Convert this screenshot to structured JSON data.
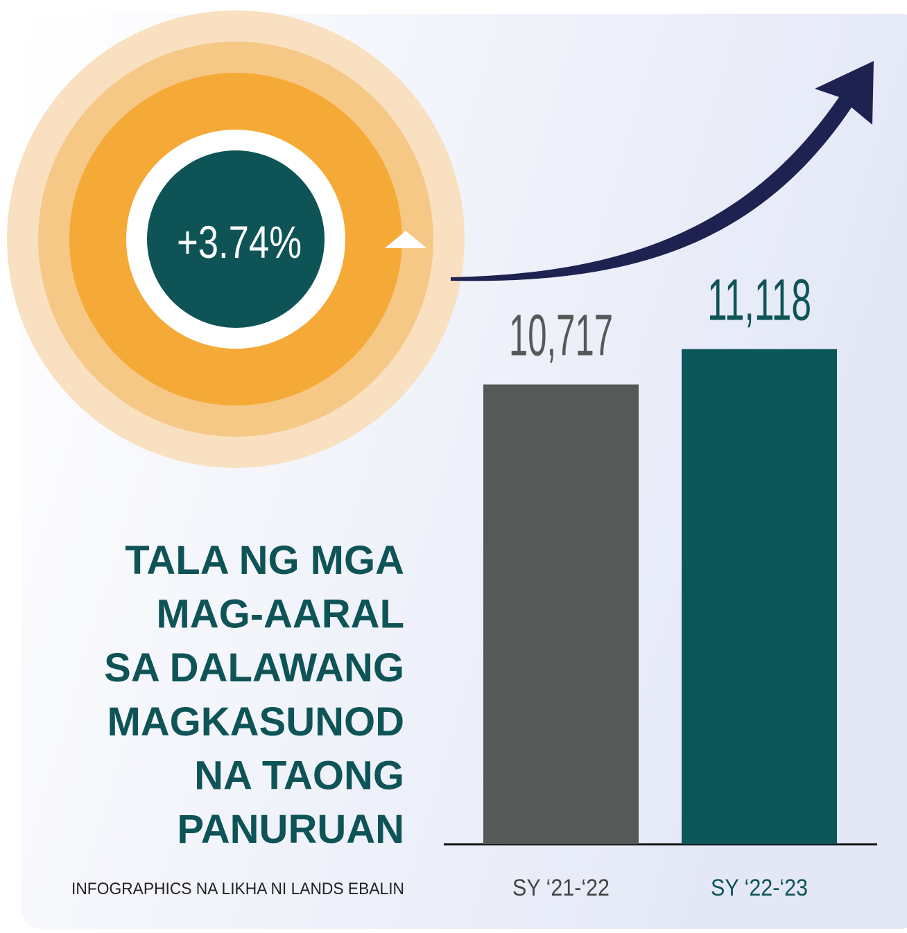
{
  "chart_data": {
    "type": "bar",
    "title": [
      "TALA NG MGA",
      "MAG-AARAL",
      "SA DALAWANG",
      "MAGKASUNOD",
      "NA TAONG",
      "PANURUAN"
    ],
    "annotation": "+3.74%",
    "credit": "INFOGRAPHICS NA LIKHA NI LANDS EBALIN",
    "categories": [
      "SY ‘21-‘22",
      "SY ‘22-‘23"
    ],
    "values": [
      10717,
      11118
    ],
    "value_labels": [
      "10,717",
      "11,118"
    ],
    "colors": [
      "#555958",
      "#0c5659"
    ],
    "ylim": [
      5500,
      15000
    ]
  }
}
